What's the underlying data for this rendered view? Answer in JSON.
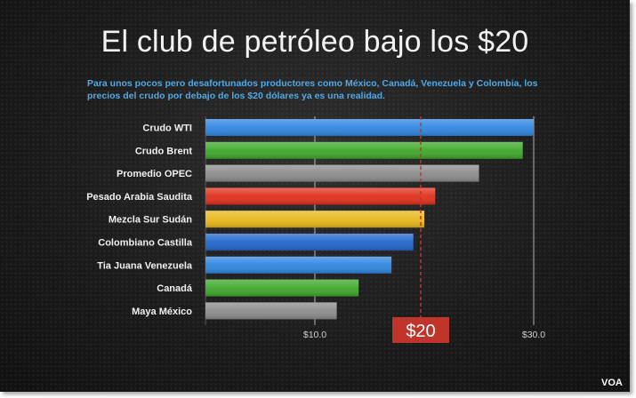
{
  "chart_data": {
    "type": "bar",
    "orientation": "horizontal",
    "title": "El club de petróleo bajo los $20",
    "subtitle": "Para unos pocos pero desafortunados productores como México, Canadá, Venezuela y Colombia, los precios del crudo por debajo de los $20 dólares ya es una realidad.",
    "categories": [
      "Crudo WTI",
      "Crudo Brent",
      "Promedio OPEC",
      "Pesado Arabia Saudita",
      "Mezcla Sur Sudán",
      "Colombiano Castilla",
      "Tia Juana Venezuela",
      "Canadá",
      "Maya México"
    ],
    "values": [
      30.0,
      29.0,
      25.0,
      21.0,
      20.0,
      19.0,
      17.0,
      14.0,
      12.0
    ],
    "colors": [
      "#2f86e0",
      "#3ea82a",
      "#8c8c8c",
      "#e0311c",
      "#e8b81c",
      "#2266cc",
      "#2f86e0",
      "#3ea82a",
      "#8c8c8c"
    ],
    "xlim": [
      0,
      30
    ],
    "xticks": [
      "$10.0",
      "$30.0"
    ],
    "xtick_values": [
      10,
      30
    ],
    "reference_line": {
      "value": 20,
      "label": "$20",
      "color": "#c0342b"
    },
    "grid": "vertical"
  },
  "source": "VOA"
}
